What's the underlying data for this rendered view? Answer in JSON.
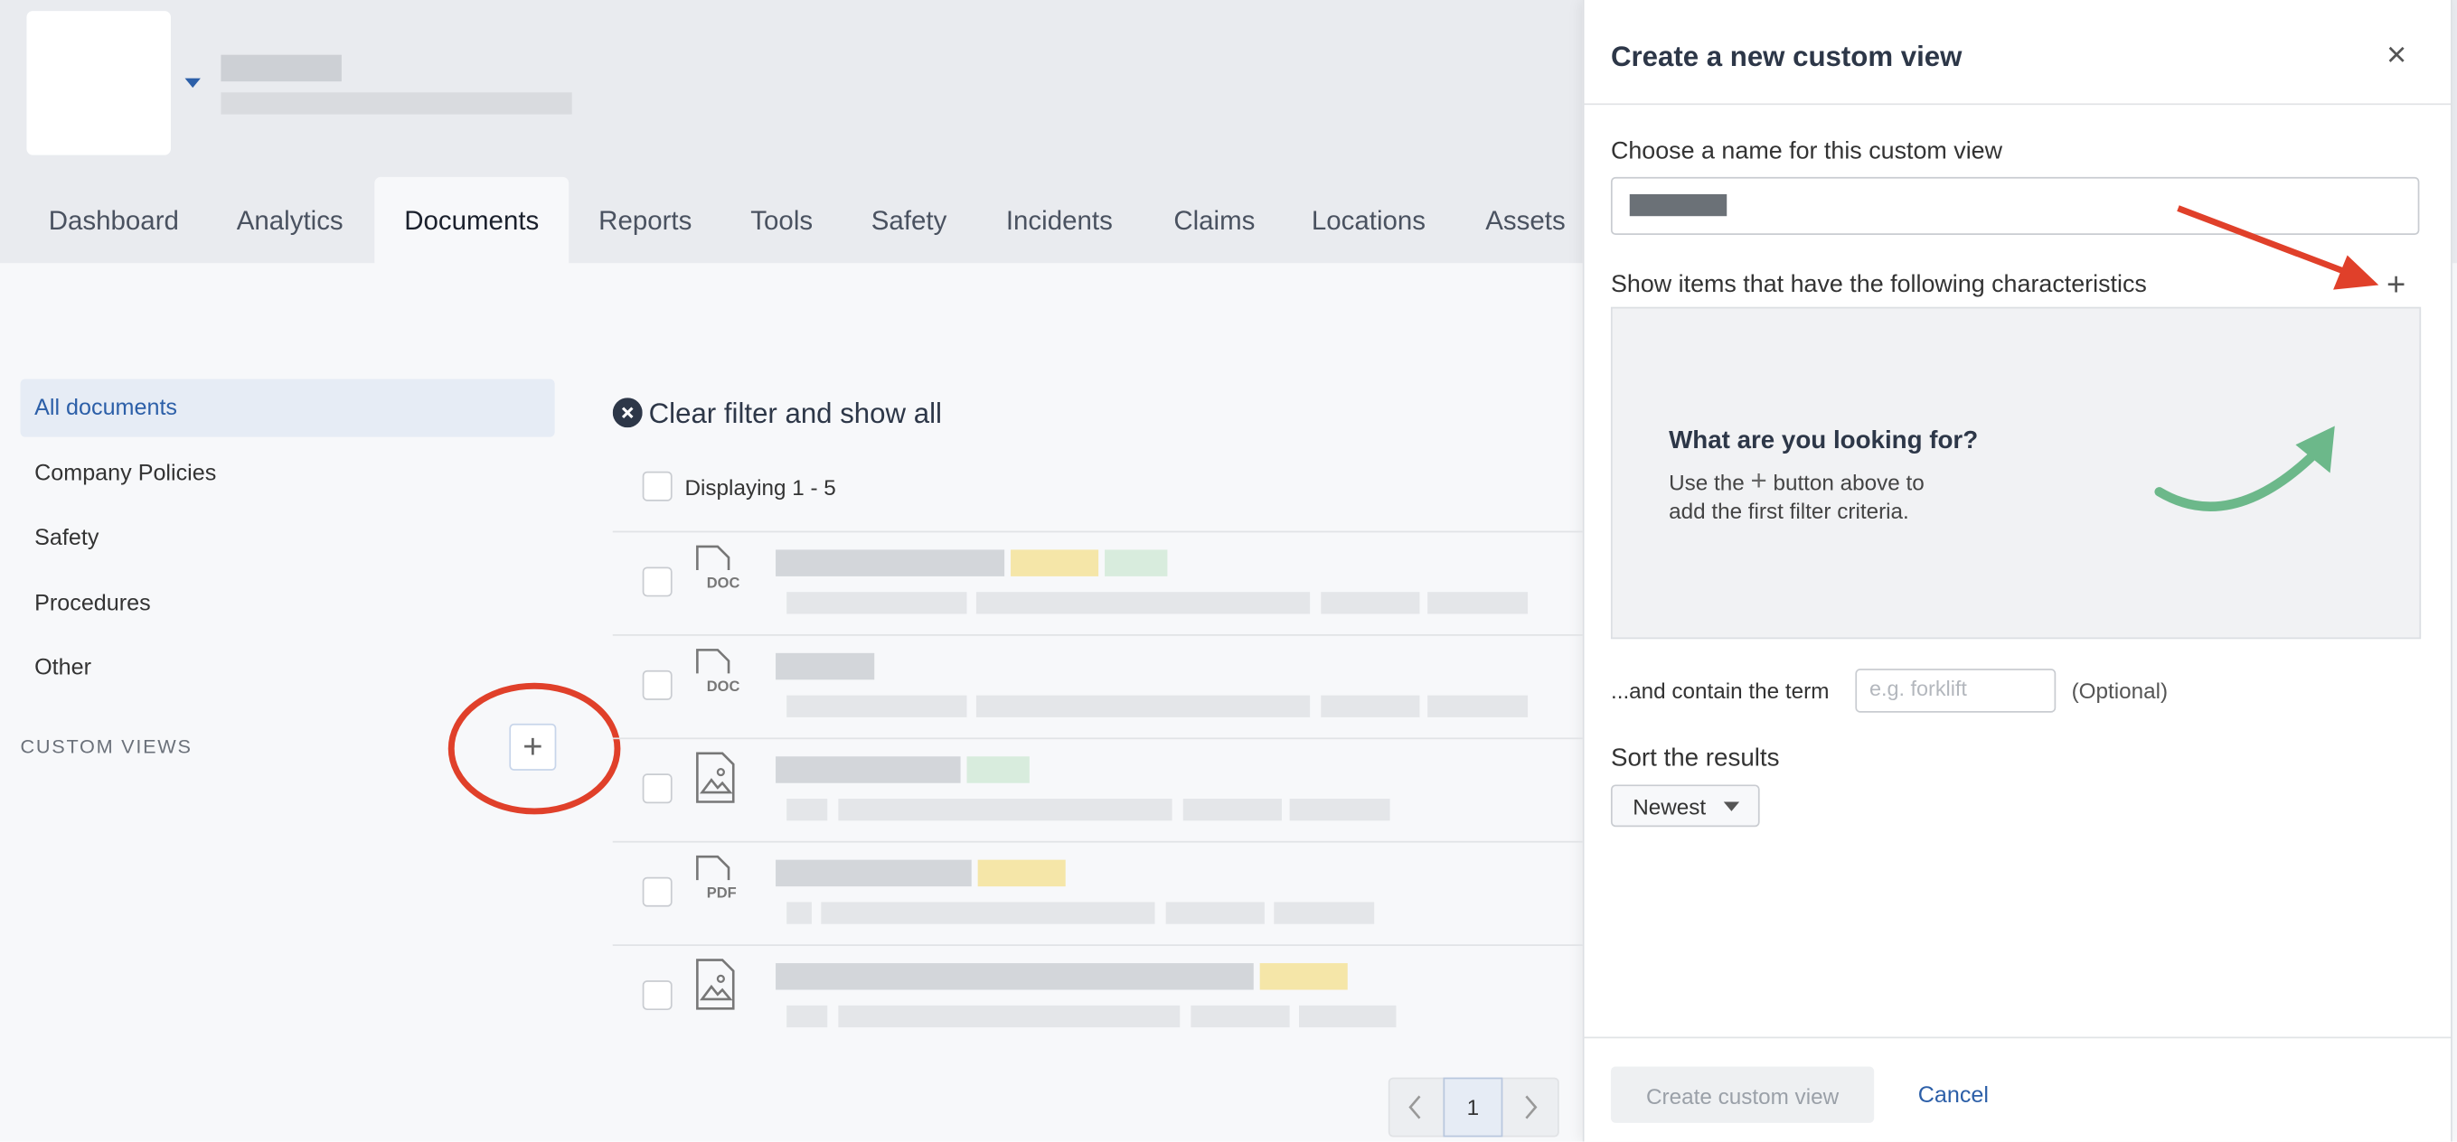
{
  "header": {
    "tabs": [
      "Dashboard",
      "Analytics",
      "Documents",
      "Reports",
      "Tools",
      "Safety",
      "Incidents",
      "Claims",
      "Locations",
      "Assets"
    ]
  },
  "sidebar": {
    "items": [
      "All documents",
      "Company Policies",
      "Safety",
      "Procedures",
      "Other"
    ],
    "custom_views_label": "CUSTOM VIEWS"
  },
  "documents": {
    "clear_filter": "Clear filter and show all",
    "displaying": "Displaying 1 - 5",
    "file_labels": [
      "DOC",
      "DOC",
      "PDF"
    ],
    "page": "1"
  },
  "panel": {
    "title": "Create a new custom view",
    "close": "×",
    "name_label": "Choose a name for this custom view",
    "characteristics_label": "Show items that have the following characteristics",
    "add": "+",
    "empty_state": {
      "heading": "What are you looking for?",
      "text_before": "Use the",
      "icon": "+",
      "text_after": "button above to",
      "text_line2": "add the first filter criteria."
    },
    "term_label": "...and contain the term",
    "term_placeholder": "e.g. forklift",
    "optional": "(Optional)",
    "sort_label": "Sort the results",
    "sort_value": "Newest",
    "create_button": "Create custom view",
    "cancel_button": "Cancel"
  }
}
